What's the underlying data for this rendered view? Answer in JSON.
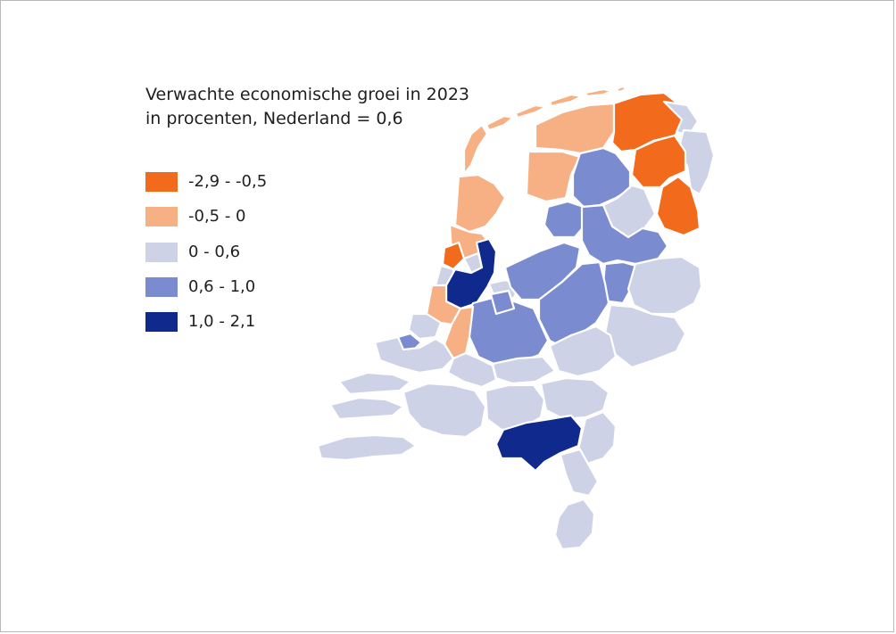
{
  "title": {
    "line1": "Verwachte economische groei in 2023",
    "line2": "in procenten, Nederland = 0,6"
  },
  "legend": [
    {
      "label": "-2,9 - -0,5",
      "color": "#f26a1b"
    },
    {
      "label": "-0,5 - 0",
      "color": "#f6b084"
    },
    {
      "label": "0 - 0,6",
      "color": "#cdd2e6"
    },
    {
      "label": "0,6 - 1,0",
      "color": "#7b8bd0"
    },
    {
      "label": "1,0 - 2,1",
      "color": "#0f2a8c"
    }
  ],
  "map": {
    "colors": {
      "class_1": "#f26a1b",
      "class_2": "#f6b084",
      "class_3": "#cdd2e6",
      "class_4": "#7b8bd0",
      "class_5": "#0f2a8c"
    }
  }
}
